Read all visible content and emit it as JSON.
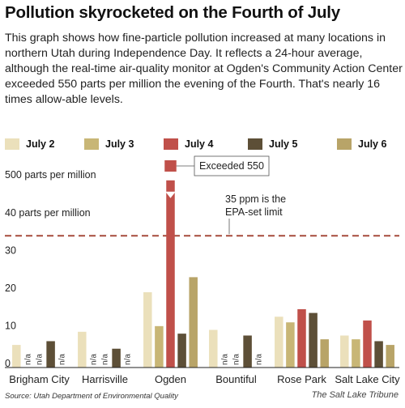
{
  "chart_data": {
    "type": "bar",
    "title": "Pollution skyrocketed on the Fourth of July",
    "description": "This graph shows how fine-particle pollution increased at many locations in northern Utah during Independence Day. It reflects a 24-hour average, although the real-time air-quality monitor at Ogden's Community Action Center exceeded 550 parts per million the evening of the Fourth. That's nearly 16 times allow-able levels.",
    "categories": [
      "Brigham City",
      "Harrisville",
      "Ogden",
      "Bountiful",
      "Rose Park",
      "Salt Lake City"
    ],
    "series": [
      {
        "name": "July 2",
        "color": "#ebe0bb",
        "values": [
          6,
          9.5,
          20,
          10,
          13.5,
          8.5
        ]
      },
      {
        "name": "July 3",
        "color": "#c8b676",
        "values": [
          null,
          null,
          11,
          null,
          12,
          7.5
        ]
      },
      {
        "name": "July 4",
        "color": "#c0504a",
        "values": [
          null,
          null,
          495,
          null,
          15.5,
          12.5
        ]
      },
      {
        "name": "July 5",
        "color": "#5d4f37",
        "values": [
          7,
          5,
          9,
          8.5,
          14.5,
          7
        ]
      },
      {
        "name": "July 6",
        "color": "#b8a468",
        "values": [
          null,
          null,
          24,
          null,
          7.5,
          6
        ]
      }
    ],
    "na_label": "n/a",
    "y_ticks": [
      {
        "value": 0,
        "label": "0"
      },
      {
        "value": 10,
        "label": "10"
      },
      {
        "value": 20,
        "label": "20"
      },
      {
        "value": 30,
        "label": "30"
      },
      {
        "value": 40,
        "label": "40 parts per million"
      },
      {
        "value": 500,
        "label": "500 parts per million"
      }
    ],
    "reference_line": {
      "value": 35,
      "label_lines": [
        "35 ppm is the",
        "EPA-set limit"
      ],
      "color": "#a64b3c"
    },
    "callout": {
      "label": "Exceeded 550",
      "value": 550
    },
    "grid": false,
    "legend": "top",
    "source": "Source: Utah Department of Environmental Quality",
    "credit": "The Salt Lake Tribune"
  }
}
